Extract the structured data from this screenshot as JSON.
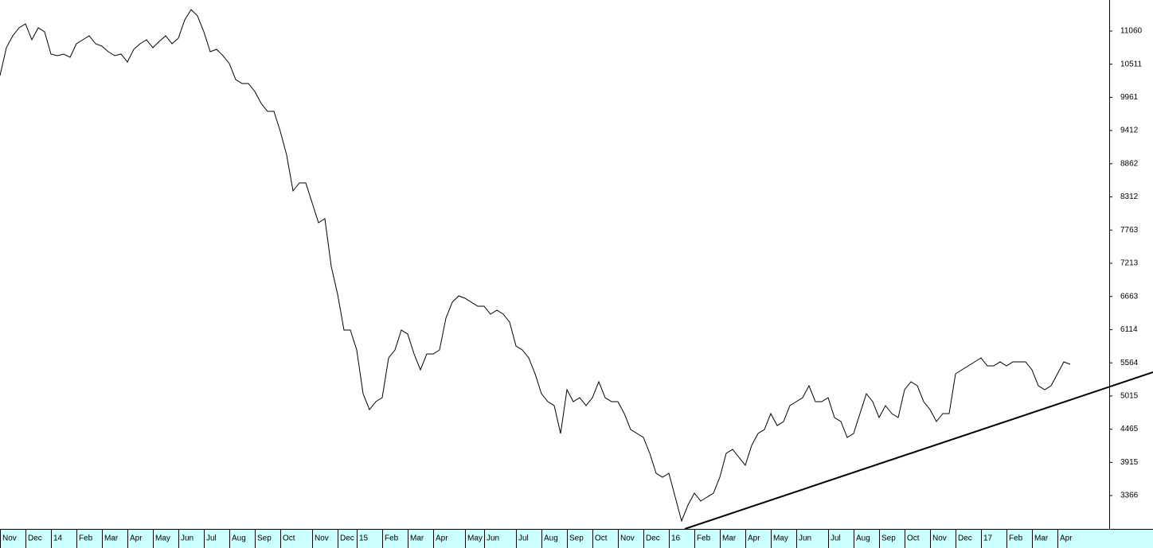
{
  "chart_data": {
    "type": "line",
    "categories": [
      "Nov",
      null,
      null,
      null,
      "Dec",
      null,
      null,
      null,
      "14",
      null,
      null,
      null,
      "Feb",
      null,
      null,
      null,
      "Mar",
      null,
      null,
      null,
      "Apr",
      null,
      null,
      null,
      "May",
      null,
      null,
      null,
      "Jun",
      null,
      null,
      null,
      "Jul",
      null,
      null,
      null,
      "Aug",
      null,
      null,
      null,
      "Sep",
      null,
      null,
      null,
      "Oct",
      null,
      null,
      null,
      null,
      "Nov",
      null,
      null,
      null,
      "Dec",
      null,
      null,
      "15",
      null,
      null,
      null,
      "Feb",
      null,
      null,
      null,
      "Mar",
      null,
      null,
      null,
      "Apr",
      null,
      null,
      null,
      null,
      "May",
      null,
      null,
      "Jun",
      null,
      null,
      null,
      null,
      "Jul",
      null,
      null,
      null,
      "Aug",
      null,
      null,
      null,
      "Sep",
      null,
      null,
      null,
      "Oct",
      null,
      null,
      null,
      "Nov",
      null,
      null,
      null,
      "Dec",
      null,
      null,
      null,
      "16",
      null,
      null,
      null,
      "Feb",
      null,
      null,
      null,
      "Mar",
      null,
      null,
      null,
      "Apr",
      null,
      null,
      null,
      "May",
      null,
      null,
      null,
      "Jun",
      null,
      null,
      null,
      null,
      "Jul",
      null,
      null,
      null,
      "Aug",
      null,
      null,
      null,
      "Sep",
      null,
      null,
      null,
      "Oct",
      null,
      null,
      null,
      "Nov",
      null,
      null,
      null,
      "Dec",
      null,
      null,
      null,
      "17",
      null,
      null,
      null,
      "Feb",
      null,
      null,
      null,
      "Mar",
      null,
      null,
      null,
      "Apr",
      null,
      null
    ],
    "series": [
      {
        "color": "#000000",
        "values": [
          10322,
          10784,
          10981,
          11113,
          11179,
          10915,
          11113,
          11047,
          10678,
          10652,
          10678,
          10625,
          10849,
          10915,
          10981,
          10849,
          10810,
          10718,
          10652,
          10678,
          10546,
          10757,
          10849,
          10915,
          10784,
          10889,
          10981,
          10849,
          10942,
          11245,
          11416,
          11311,
          11047,
          10718,
          10757,
          10652,
          10520,
          10257,
          10191,
          10191,
          10059,
          9861,
          9730,
          9730,
          9400,
          9005,
          8412,
          8544,
          8544,
          8214,
          7885,
          7951,
          7160,
          6699,
          6106,
          6106,
          5777,
          5052,
          4789,
          4921,
          4987,
          5645,
          5777,
          6106,
          6041,
          5711,
          5448,
          5711,
          5711,
          5777,
          6304,
          6568,
          6673,
          6633,
          6568,
          6502,
          6502,
          6370,
          6436,
          6370,
          6238,
          5843,
          5777,
          5645,
          5382,
          5052,
          4921,
          4855,
          4394,
          5118,
          4921,
          4987,
          4855,
          4987,
          5250,
          4987,
          4921,
          4921,
          4723,
          4460,
          4394,
          4328,
          4064,
          3735,
          3669,
          3735,
          3340,
          2944,
          3208,
          3406,
          3274,
          3340,
          3406,
          3669,
          4064,
          4130,
          3998,
          3867,
          4196,
          4394,
          4460,
          4723,
          4525,
          4591,
          4855,
          4921,
          4987,
          5184,
          4921,
          4921,
          4987,
          4657,
          4591,
          4328,
          4394,
          4723,
          5052,
          4921,
          4657,
          4855,
          4723,
          4657,
          5118,
          5250,
          5184,
          4921,
          4789,
          4591,
          4723,
          4723,
          5382,
          5448,
          5514,
          5579,
          5645,
          5514,
          5514,
          5579,
          5514,
          5579,
          5579,
          5579,
          5448,
          5184,
          5118,
          5184,
          5382,
          5579,
          5540
        ]
      }
    ],
    "ylim": [
      2813,
      11574
    ],
    "yticks": [
      11060,
      10511,
      9961,
      9412,
      8862,
      8312,
      7763,
      7213,
      6663,
      6114,
      5564,
      5015,
      4465,
      3915,
      3366
    ]
  }
}
